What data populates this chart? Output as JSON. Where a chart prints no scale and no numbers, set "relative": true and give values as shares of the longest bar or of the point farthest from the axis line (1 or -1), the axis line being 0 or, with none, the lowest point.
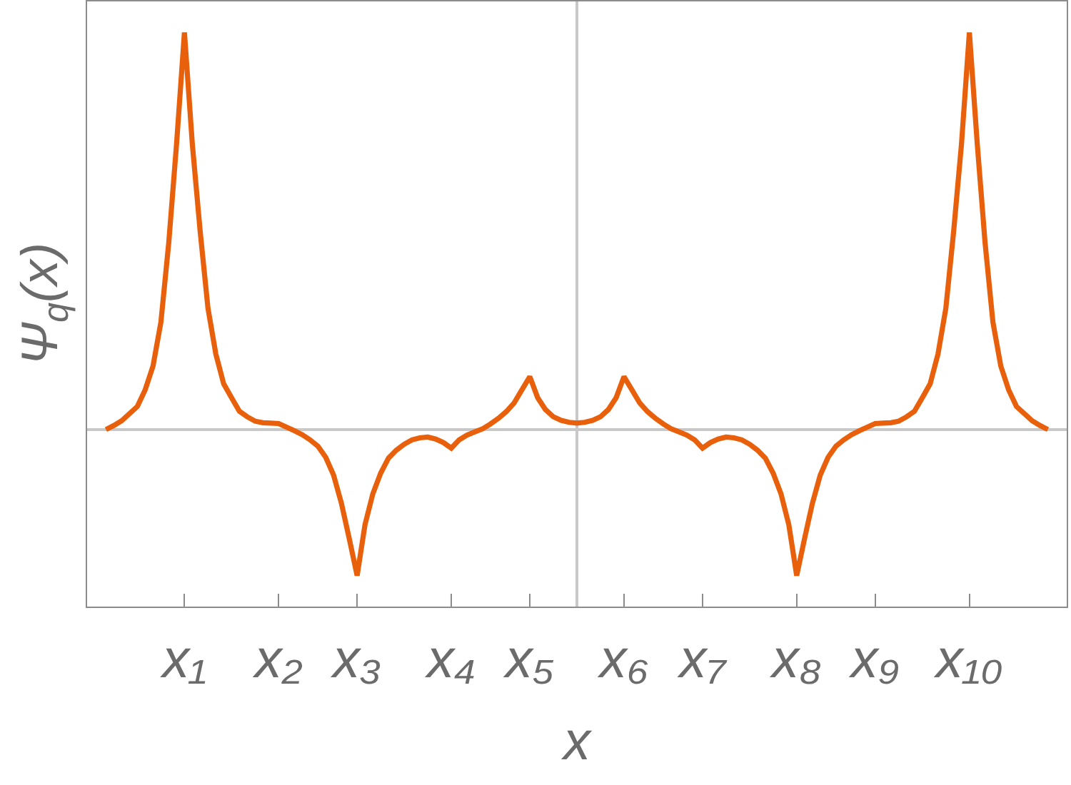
{
  "chart_data": {
    "type": "line",
    "xlabel": "x",
    "ylabel": "Ψ$_{q}$(x)",
    "color": "#e8600c",
    "relative": true,
    "categories": [
      null,
      null,
      null,
      null,
      null,
      null,
      null,
      null,
      null,
      null,
      "x₁",
      null,
      null,
      null,
      null,
      null,
      null,
      null,
      null,
      null,
      null,
      null,
      "x₂",
      null,
      null,
      null,
      null,
      null,
      null,
      null,
      null,
      null,
      "x₃",
      null,
      null,
      null,
      null,
      null,
      null,
      null,
      null,
      null,
      null,
      null,
      "x₄",
      null,
      null,
      null,
      null,
      null,
      null,
      null,
      null,
      null,
      "x₅",
      null,
      null,
      null,
      null,
      null,
      null,
      null,
      null,
      null,
      null,
      null,
      "x₆",
      null,
      null,
      null,
      null,
      null,
      null,
      null,
      null,
      null,
      "x₇",
      null,
      null,
      null,
      null,
      null,
      null,
      null,
      null,
      null,
      null,
      null,
      "x₈",
      null,
      null,
      null,
      null,
      null,
      null,
      null,
      null,
      null,
      "x₉",
      null,
      null,
      null,
      null,
      null,
      null,
      null,
      null,
      null,
      null,
      null,
      "x₁₀",
      null,
      null,
      null,
      null,
      null,
      null,
      null,
      null,
      null,
      null
    ],
    "values": [
      0,
      0.01,
      0.022,
      0.04,
      0.058,
      0.1,
      0.16,
      0.27,
      0.47,
      0.72,
      1,
      0.72,
      0.5,
      0.305,
      0.19,
      0.115,
      0.08,
      0.046,
      0.032,
      0.021,
      0.017,
      0.016,
      0.015,
      0.006,
      -0.003,
      -0.013,
      -0.026,
      -0.042,
      -0.07,
      -0.115,
      -0.186,
      -0.275,
      -0.368,
      -0.24,
      -0.162,
      -0.11,
      -0.072,
      -0.052,
      -0.037,
      -0.026,
      -0.021,
      -0.019,
      -0.024,
      -0.033,
      -0.047,
      -0.026,
      -0.014,
      -0.006,
      0.002,
      0.014,
      0.028,
      0.045,
      0.067,
      0.1,
      0.133,
      0.08,
      0.05,
      0.032,
      0.023,
      0.018,
      0.016,
      0.018,
      0.023,
      0.032,
      0.05,
      0.08,
      0.133,
      0.1,
      0.067,
      0.045,
      0.028,
      0.014,
      0.002,
      -0.006,
      -0.014,
      -0.026,
      -0.047,
      -0.033,
      -0.024,
      -0.019,
      -0.021,
      -0.026,
      -0.037,
      -0.052,
      -0.072,
      -0.11,
      -0.162,
      -0.24,
      -0.368,
      -0.275,
      -0.186,
      -0.115,
      -0.07,
      -0.042,
      -0.026,
      -0.013,
      -0.003,
      0.006,
      0.015,
      0.016,
      0.017,
      0.021,
      0.032,
      0.046,
      0.08,
      0.115,
      0.19,
      0.305,
      0.5,
      0.72,
      1,
      0.72,
      0.47,
      0.27,
      0.16,
      0.1,
      0.058,
      0.04,
      0.022,
      0.01,
      0
    ]
  }
}
